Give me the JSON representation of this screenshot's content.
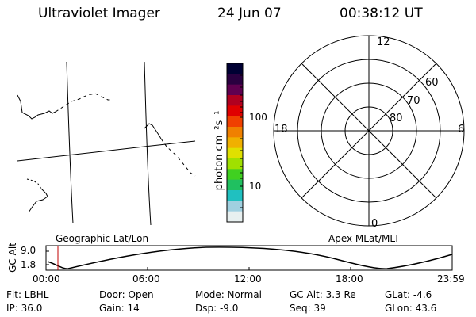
{
  "header": {
    "title": "Ultraviolet Imager",
    "date": "24 Jun 07",
    "time": "00:38:12 UT"
  },
  "colorbar": {
    "unit_label": "photon cm⁻²s⁻¹",
    "ticks": [
      "100",
      "10"
    ],
    "colors": [
      "#000033",
      "#2a0040",
      "#600050",
      "#b00020",
      "#e00000",
      "#f04000",
      "#f08000",
      "#f0b000",
      "#e0e000",
      "#a0e000",
      "#40d020",
      "#20c060",
      "#20c0c0",
      "#a0d0e0",
      "#e8f0f0"
    ]
  },
  "polar": {
    "mlt_labels": {
      "top": "12",
      "bottom": "0",
      "left": "18",
      "right": "6"
    },
    "lat_labels": [
      "60",
      "70",
      "80"
    ]
  },
  "left_map": {
    "title": "Geographic Lat/Lon"
  },
  "right_map": {
    "title": "Apex MLat/MLT"
  },
  "timeline": {
    "ylabel": "GC Alt",
    "yticks": [
      "9.0",
      "1.8"
    ],
    "xticks": [
      "00:00",
      "06:00",
      "12:00",
      "18:00",
      "23:59"
    ],
    "marker_color": "#c00000"
  },
  "footer": {
    "flt": "Flt: LBHL",
    "ip": "IP: 36.0",
    "door": "Door: Open",
    "gain": "Gain: 14",
    "mode": "Mode: Normal",
    "dsp": "Dsp:    -9.0",
    "gcalt": "GC Alt: 3.3 Re",
    "seq": "Seq: 39",
    "glat": "GLat:   -4.6",
    "glon": "GLon:  43.6"
  }
}
